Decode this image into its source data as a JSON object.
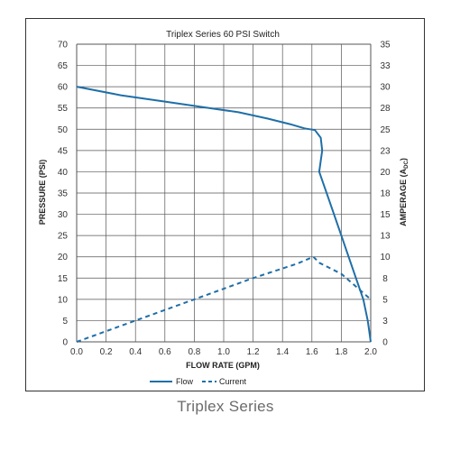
{
  "caption": "Triplex Series",
  "chart_data": {
    "type": "line",
    "title": "Triplex Series 60 PSI Switch",
    "xlabel": "FLOW RATE (GPM)",
    "ylabel": "PRESSURE (PSI)",
    "y2label_main": "AMPERAGE (A",
    "y2label_sub": "DC",
    "y2label_end": ")",
    "xlim": [
      0.0,
      2.0
    ],
    "ylim": [
      0,
      70
    ],
    "y2lim": [
      0,
      35
    ],
    "x_ticks": [
      "0.0",
      "0.2",
      "0.4",
      "0.6",
      "0.8",
      "1.0",
      "1.2",
      "1.4",
      "1.6",
      "1.8",
      "2.0"
    ],
    "y_ticks": [
      "0",
      "5",
      "10",
      "15",
      "20",
      "25",
      "30",
      "35",
      "40",
      "45",
      "50",
      "55",
      "60",
      "65",
      "70"
    ],
    "y2_ticks": [
      "0",
      "3",
      "5",
      "8",
      "10",
      "13",
      "15",
      "18",
      "20",
      "23",
      "25",
      "28",
      "30",
      "33",
      "35"
    ],
    "grid": true,
    "legend_position": "bottom",
    "series": [
      {
        "name": "Flow",
        "axis": "left",
        "style": "solid",
        "color": "#1f6fa8",
        "x": [
          0.0,
          0.3,
          0.6,
          0.9,
          1.1,
          1.3,
          1.45,
          1.55,
          1.62,
          1.66,
          1.67,
          1.65,
          1.72,
          1.8,
          1.88,
          1.95,
          1.98,
          2.0
        ],
        "y": [
          60,
          58,
          56.5,
          55,
          54,
          52.5,
          51.2,
          50.2,
          49.8,
          48,
          45,
          40,
          33,
          25,
          17,
          10,
          5,
          0
        ]
      },
      {
        "name": "Current",
        "axis": "right",
        "style": "dashed",
        "color": "#1f6fa8",
        "x": [
          0.0,
          0.4,
          0.8,
          1.2,
          1.5,
          1.61,
          1.65,
          1.8,
          1.9,
          2.0
        ],
        "y": [
          0,
          2.5,
          5,
          7.5,
          9.2,
          10,
          9.3,
          8.0,
          6.5,
          5.0
        ]
      }
    ]
  }
}
